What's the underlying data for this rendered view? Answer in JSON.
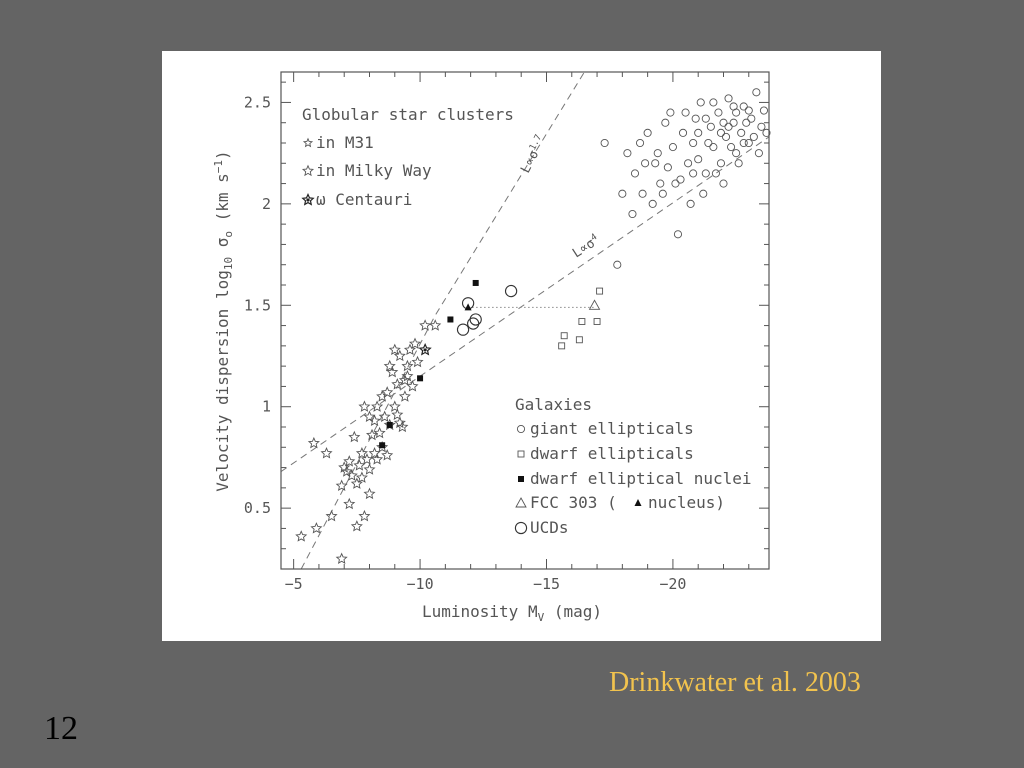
{
  "slide": {
    "caption": "Drinkwater et al. 2003",
    "slide_number": "12",
    "colors": {
      "background": "#646464",
      "caption": "#f2c34e",
      "panel": "#ffffff",
      "ink": "#555555"
    }
  },
  "chart_data": {
    "type": "scatter",
    "xlabel": "Luminosity M",
    "xlabel_sub": "V",
    "xlabel_unit": "(mag)",
    "ylabel": "Velocity dispersion log",
    "ylabel_sub": "10",
    "ylabel_sym": "σ",
    "ylabel_sym_sub": "o",
    "ylabel_unit": "(km s",
    "ylabel_unit_sup": "−1",
    "ylabel_close": ")",
    "x_inverted": true,
    "xlim": [
      -4.5,
      -23.8
    ],
    "ylim": [
      0.2,
      2.65
    ],
    "x_ticks": [
      -5,
      -10,
      -15,
      -20
    ],
    "x_tick_labels": [
      "−5",
      "−10",
      "−15",
      "−20"
    ],
    "y_ticks": [
      0.5,
      1,
      1.5,
      2,
      2.5
    ],
    "y_tick_labels": [
      "0.5",
      "1",
      "1.5",
      "2",
      "2.5"
    ],
    "legend_top": {
      "title": "Globular star clusters",
      "items": [
        {
          "marker": "star-small",
          "label": "in M31"
        },
        {
          "marker": "star",
          "label": "in Milky Way"
        },
        {
          "marker": "star-filled-center",
          "label": "ω Centauri"
        }
      ]
    },
    "legend_bottom": {
      "title": "Galaxies",
      "items": [
        {
          "marker": "circle-small",
          "label": "giant ellipticals"
        },
        {
          "marker": "square",
          "label": "dwarf ellipticals"
        },
        {
          "marker": "square-filled",
          "label": "dwarf elliptical nuclei"
        },
        {
          "marker": "triangle",
          "label": "FCC 303 (",
          "label_marker": "triangle-filled",
          "label_tail": "nucleus)"
        },
        {
          "marker": "circle-large",
          "label": "UCDs"
        }
      ]
    },
    "annotations": [
      {
        "base": "L",
        "op": "∝",
        "sym": "σ",
        "exp": "1.7"
      },
      {
        "base": "L",
        "op": "∝",
        "sym": "σ",
        "exp": "4"
      }
    ],
    "fit_lines": [
      {
        "name": "",
        "points": [
          [
            -5.3,
            0.2
          ],
          [
            -10.6,
            1.45
          ],
          [
            -16.5,
            2.65
          ]
        ]
      },
      {
        "name": "",
        "points": [
          [
            -4.5,
            0.68
          ],
          [
            -23.8,
            2.33
          ]
        ]
      }
    ],
    "series": [
      {
        "name": "",
        "marker": "star",
        "points": [
          [
            -5.3,
            0.36
          ],
          [
            -5.9,
            0.4
          ],
          [
            -6.5,
            0.46
          ],
          [
            -7.2,
            0.52
          ],
          [
            -7.8,
            0.46
          ],
          [
            -7.5,
            0.41
          ],
          [
            -6.9,
            0.25
          ],
          [
            -6.9,
            0.61
          ],
          [
            -7.3,
            0.66
          ],
          [
            -7.6,
            0.71
          ],
          [
            -7.9,
            0.74
          ],
          [
            -8.2,
            0.77
          ],
          [
            -8.5,
            0.8
          ],
          [
            -7.1,
            0.68
          ],
          [
            -7.5,
            0.62
          ],
          [
            -8.0,
            0.69
          ],
          [
            -8.4,
            0.87
          ],
          [
            -8.8,
            0.91
          ],
          [
            -9.2,
            0.92
          ],
          [
            -7.7,
            0.77
          ],
          [
            -8.1,
            0.86
          ],
          [
            -8.6,
            0.95
          ],
          [
            -9.0,
            1.0
          ],
          [
            -9.4,
            1.05
          ],
          [
            -9.7,
            1.1
          ],
          [
            -8.3,
            1.0
          ],
          [
            -8.7,
            1.07
          ],
          [
            -9.1,
            1.11
          ],
          [
            -9.5,
            1.15
          ],
          [
            -9.9,
            1.22
          ],
          [
            -8.9,
            1.17
          ],
          [
            -9.2,
            1.25
          ],
          [
            -9.6,
            1.28
          ],
          [
            -9.8,
            1.31
          ],
          [
            -10.2,
            1.4
          ],
          [
            -10.6,
            1.4
          ],
          [
            -9.0,
            1.28
          ],
          [
            -8.0,
            0.57
          ],
          [
            -8.7,
            0.76
          ],
          [
            -9.5,
            1.2
          ],
          [
            -7.0,
            0.7
          ],
          [
            -6.3,
            0.77
          ],
          [
            -5.8,
            0.82
          ],
          [
            -7.4,
            0.85
          ],
          [
            -8.2,
            0.93
          ],
          [
            -9.3,
            0.9
          ],
          [
            -8.5,
            1.05
          ],
          [
            -7.8,
            1.0
          ],
          [
            -8.8,
            1.2
          ],
          [
            -7.2,
            0.73
          ],
          [
            -7.7,
            0.65
          ],
          [
            -8.3,
            0.74
          ],
          [
            -9.1,
            0.96
          ],
          [
            -9.4,
            1.13
          ],
          [
            -8.0,
            0.95
          ]
        ]
      },
      {
        "name": "",
        "marker": "star-filled-center",
        "points": [
          [
            -10.2,
            1.28
          ]
        ]
      },
      {
        "name": "",
        "marker": "circle-small",
        "points": [
          [
            -17.3,
            2.3
          ],
          [
            -18.5,
            2.15
          ],
          [
            -18.2,
            2.25
          ],
          [
            -18.8,
            2.05
          ],
          [
            -19.0,
            2.35
          ],
          [
            -19.3,
            2.2
          ],
          [
            -19.5,
            2.1
          ],
          [
            -19.7,
            2.4
          ],
          [
            -20.0,
            2.28
          ],
          [
            -20.2,
            1.85
          ],
          [
            -20.3,
            2.12
          ],
          [
            -20.5,
            2.45
          ],
          [
            -20.7,
            2.0
          ],
          [
            -20.8,
            2.3
          ],
          [
            -21.0,
            2.22
          ],
          [
            -21.1,
            2.5
          ],
          [
            -21.3,
            2.15
          ],
          [
            -21.5,
            2.38
          ],
          [
            -21.6,
            2.28
          ],
          [
            -21.8,
            2.45
          ],
          [
            -21.9,
            2.2
          ],
          [
            -22.1,
            2.33
          ],
          [
            -22.2,
            2.52
          ],
          [
            -22.4,
            2.4
          ],
          [
            -22.5,
            2.25
          ],
          [
            -22.7,
            2.35
          ],
          [
            -22.8,
            2.48
          ],
          [
            -23.0,
            2.3
          ],
          [
            -23.1,
            2.42
          ],
          [
            -23.3,
            2.55
          ],
          [
            -23.5,
            2.38
          ],
          [
            -18.0,
            2.05
          ],
          [
            -18.7,
            2.3
          ],
          [
            -19.2,
            2.0
          ],
          [
            -19.8,
            2.18
          ],
          [
            -20.4,
            2.35
          ],
          [
            -21.2,
            2.05
          ],
          [
            -21.7,
            2.15
          ],
          [
            -22.0,
            2.4
          ],
          [
            -22.6,
            2.2
          ],
          [
            -23.2,
            2.33
          ],
          [
            -20.9,
            2.42
          ],
          [
            -21.4,
            2.3
          ],
          [
            -22.3,
            2.28
          ],
          [
            -22.9,
            2.4
          ],
          [
            -23.6,
            2.46
          ],
          [
            -20.1,
            2.1
          ],
          [
            -19.4,
            2.25
          ],
          [
            -18.4,
            1.95
          ],
          [
            -21.9,
            2.35
          ],
          [
            -22.5,
            2.45
          ],
          [
            -21.0,
            2.35
          ],
          [
            -20.6,
            2.2
          ],
          [
            -23.4,
            2.25
          ],
          [
            -22.0,
            2.1
          ],
          [
            -21.6,
            2.5
          ],
          [
            -22.8,
            2.3
          ],
          [
            -17.8,
            1.7
          ],
          [
            -19.9,
            2.45
          ],
          [
            -20.8,
            2.15
          ],
          [
            -22.2,
            2.38
          ],
          [
            -21.3,
            2.42
          ],
          [
            -23.0,
            2.46
          ],
          [
            -19.6,
            2.05
          ],
          [
            -18.9,
            2.2
          ],
          [
            -23.7,
            2.35
          ],
          [
            -22.4,
            2.48
          ]
        ]
      },
      {
        "name": "",
        "marker": "square",
        "points": [
          [
            -15.6,
            1.3
          ],
          [
            -15.7,
            1.35
          ],
          [
            -16.3,
            1.33
          ],
          [
            -16.4,
            1.42
          ],
          [
            -17.0,
            1.42
          ],
          [
            -17.1,
            1.57
          ]
        ]
      },
      {
        "name": "",
        "marker": "square-filled",
        "points": [
          [
            -8.5,
            0.81
          ],
          [
            -8.8,
            0.91
          ],
          [
            -10.0,
            1.14
          ],
          [
            -11.2,
            1.43
          ],
          [
            -12.2,
            1.61
          ]
        ]
      },
      {
        "name": "",
        "marker": "triangle",
        "points": [
          [
            -16.9,
            1.5
          ]
        ]
      },
      {
        "name": "",
        "marker": "triangle-filled",
        "points": [
          [
            -11.9,
            1.49
          ]
        ]
      },
      {
        "name": "",
        "marker": "circle-large",
        "points": [
          [
            -11.7,
            1.38
          ],
          [
            -11.9,
            1.51
          ],
          [
            -12.1,
            1.41
          ],
          [
            -12.2,
            1.43
          ],
          [
            -13.6,
            1.57
          ]
        ]
      }
    ],
    "dotted_segment": [
      [
        -11.9,
        1.49
      ],
      [
        -16.9,
        1.49
      ]
    ]
  }
}
